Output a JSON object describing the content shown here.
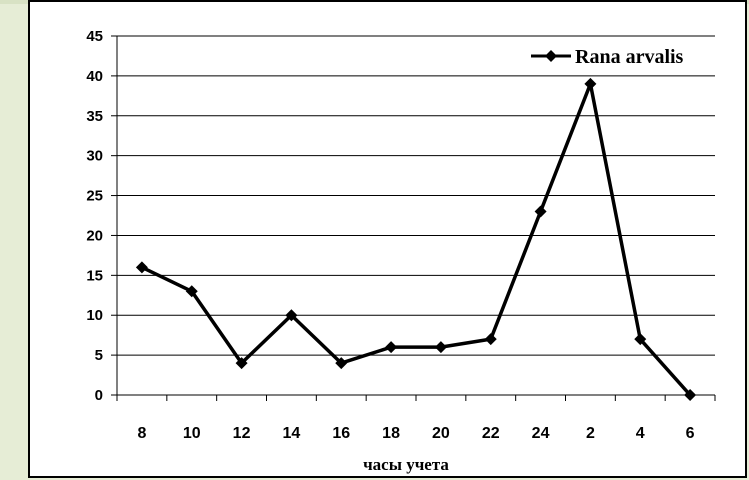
{
  "chart_data": {
    "type": "line",
    "categories": [
      "8",
      "10",
      "12",
      "14",
      "16",
      "18",
      "20",
      "22",
      "24",
      "2",
      "4",
      "6"
    ],
    "series": [
      {
        "name": "Rana arvalis",
        "values": [
          16,
          13,
          4,
          10,
          4,
          6,
          6,
          7,
          23,
          39,
          7,
          0
        ]
      }
    ],
    "y_ticks": [
      "0",
      "5",
      "10",
      "15",
      "20",
      "25",
      "30",
      "35",
      "40",
      "45"
    ],
    "xlabel": "часы учета",
    "ylabel": "",
    "ylim": [
      0,
      45
    ],
    "grid": "horizontal",
    "legend": "top-right",
    "colors": {
      "line": "#000000",
      "marker": "#000000",
      "grid": "#000000"
    }
  }
}
